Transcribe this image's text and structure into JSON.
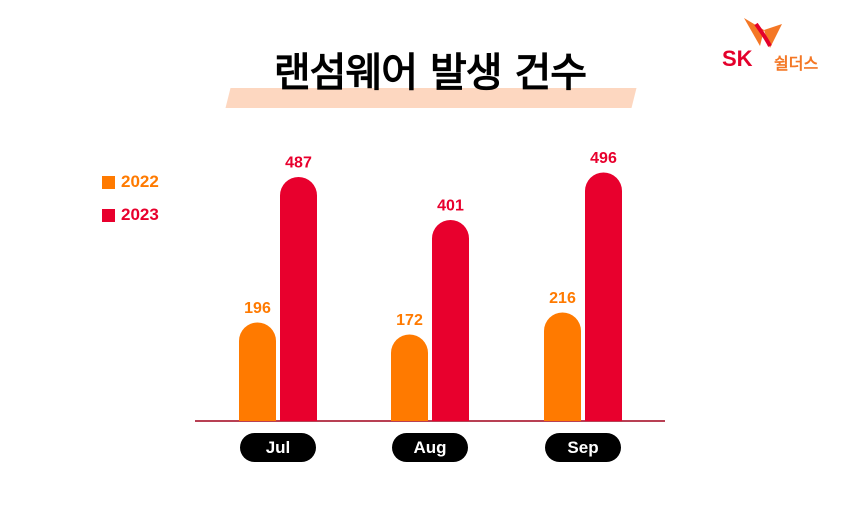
{
  "title": "랜섬웨어 발생 건수",
  "logo": {
    "brand": "SK",
    "sub": "쉴더스"
  },
  "chart_data": {
    "type": "bar",
    "categories": [
      "Jul",
      "Aug",
      "Sep"
    ],
    "series": [
      {
        "name": "2022",
        "values": [
          196,
          172,
          216
        ],
        "color": "#ff7a00"
      },
      {
        "name": "2023",
        "values": [
          487,
          401,
          496
        ],
        "color": "#e8002d"
      }
    ],
    "ylim": [
      0,
      500
    ],
    "legend": "left",
    "grid": false
  }
}
